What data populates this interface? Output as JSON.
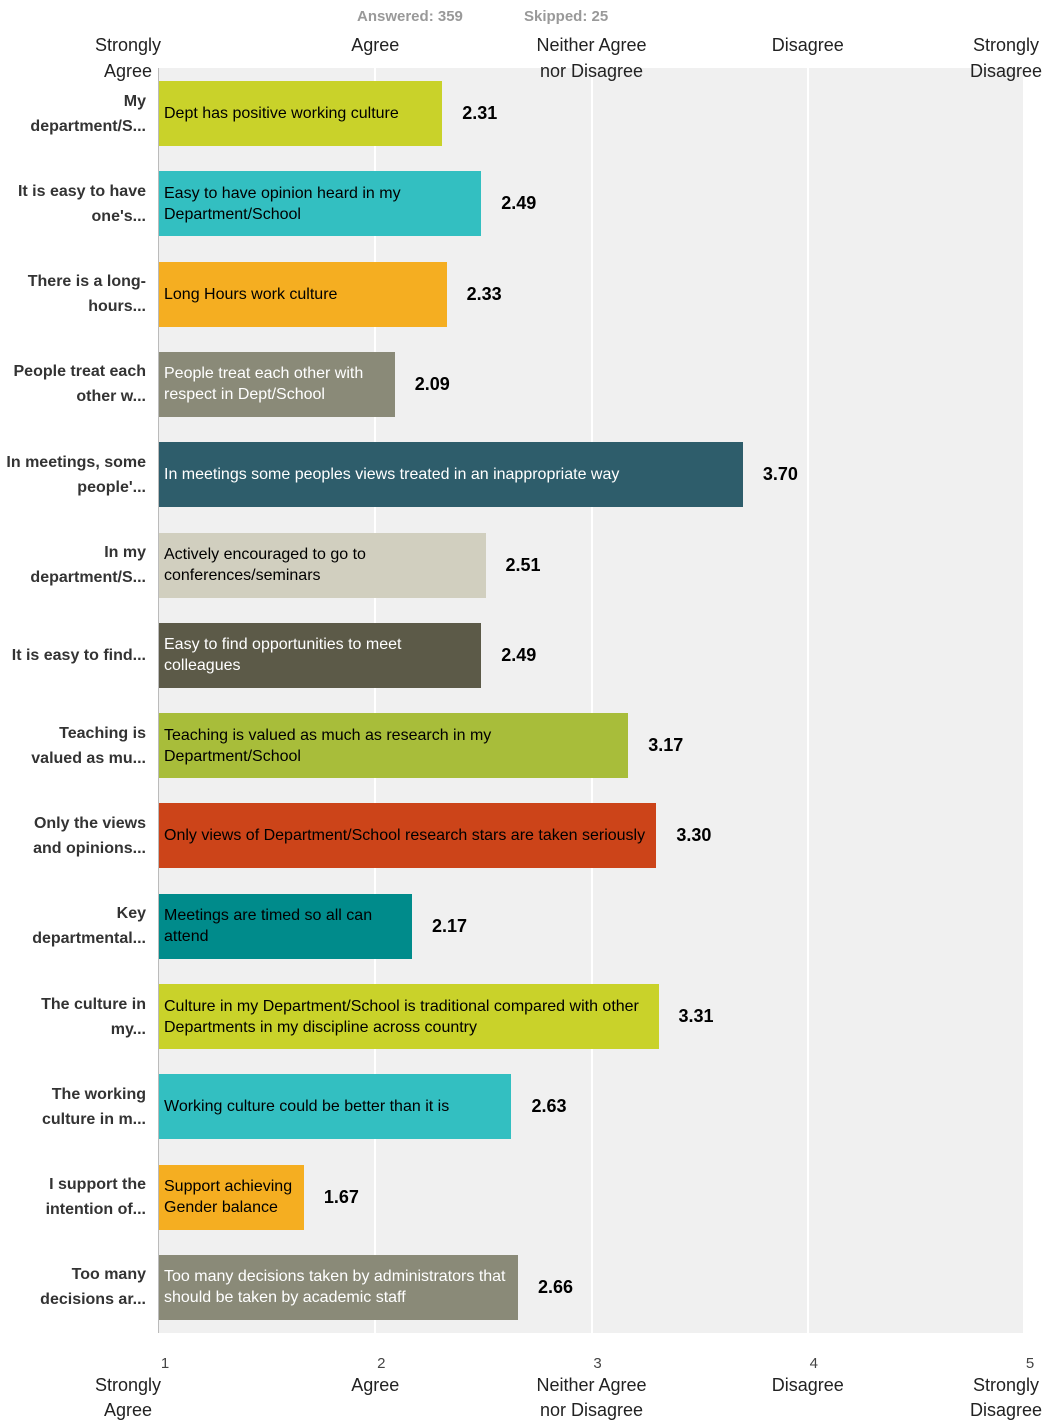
{
  "chart_data": {
    "type": "bar",
    "orientation": "horizontal",
    "answered": "Answered: 359",
    "skipped": "Skipped: 25",
    "categories": [
      "My department/S...",
      "It is easy to have one's...",
      "There is a long-hours...",
      "People treat each other w...",
      "In meetings, some people'...",
      "In my department/S...",
      "It is easy to find...",
      "Teaching is valued as mu...",
      "Only the views and opinions...",
      "Key departmental...",
      "The culture in my...",
      "The working culture in m...",
      "I support the intention of...",
      "Too many decisions ar..."
    ],
    "bar_labels": [
      "Dept has positive working culture",
      "Easy to have opinion heard in my Department/School",
      "Long Hours work culture",
      "People treat each other with respect in Dept/School",
      "In meetings some peoples views treated in an inappropriate way",
      "Actively encouraged to go to conferences/seminars",
      "Easy to find opportunities to meet colleagues",
      "Teaching is valued as much as research in my Department/School",
      "Only views of Department/School research stars are taken seriously",
      "Meetings are timed so all can attend",
      "Culture in my Department/School is traditional compared with other Departments in my discipline across country",
      "Working culture could be better than it is",
      "Support achieving Gender balance",
      "Too many decisions taken by administrators that should be taken by academic staff"
    ],
    "values": [
      2.31,
      2.49,
      2.33,
      2.09,
      3.7,
      2.51,
      2.49,
      3.17,
      3.3,
      2.17,
      3.31,
      2.63,
      1.67,
      2.66
    ],
    "value_labels": [
      "2.31",
      "2.49",
      "2.33",
      "2.09",
      "3.70",
      "2.51",
      "2.49",
      "3.17",
      "3.30",
      "2.17",
      "3.31",
      "2.63",
      "1.67",
      "2.66"
    ],
    "colors": [
      "#c9d22a",
      "#33bfc1",
      "#f5ae21",
      "#8a8a78",
      "#2e5d6b",
      "#d1cfbf",
      "#5c5a48",
      "#a8bd3a",
      "#cc4419",
      "#008b8b",
      "#c9d22a",
      "#33bfc1",
      "#f5ae21",
      "#8a8a78"
    ],
    "label_colors": [
      "#000",
      "#000",
      "#000",
      "#fff",
      "#fff",
      "#000",
      "#fff",
      "#000",
      "#000",
      "#000",
      "#000",
      "#000",
      "#000",
      "#fff"
    ],
    "xlim": [
      1,
      5
    ],
    "xticks": [
      1,
      2,
      3,
      4,
      5
    ],
    "scale_labels": [
      "Strongly\nAgree",
      "Agree",
      "Neither Agree\nnor Disagree",
      "Disagree",
      "Strongly\nDisagree"
    ],
    "grid": true
  }
}
